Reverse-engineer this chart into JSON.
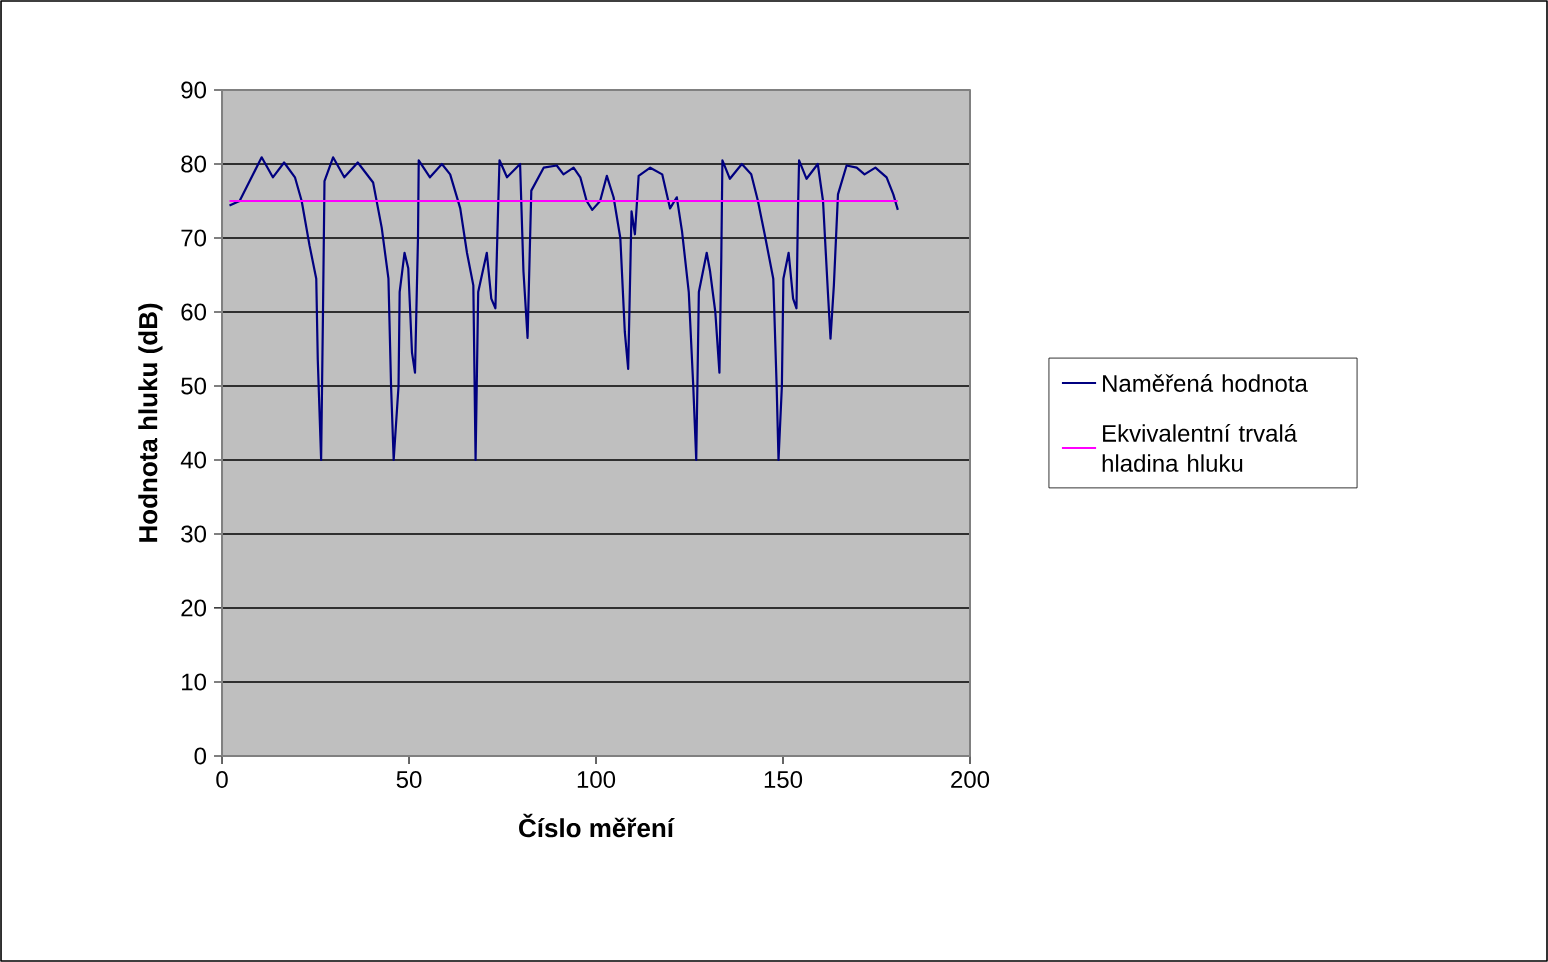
{
  "chart_data": {
    "type": "line",
    "xlabel": "Číslo měření",
    "ylabel": "Hodnota hluku (dB)",
    "xlim": [
      0,
      200
    ],
    "xticks": [
      0,
      50,
      100,
      150,
      200
    ],
    "ylim": [
      0,
      90
    ],
    "yticks": [
      0,
      10,
      20,
      30,
      40,
      50,
      60,
      70,
      80,
      90
    ],
    "grid": "y",
    "legend": "right",
    "marker": "none",
    "line_style": "solid",
    "series": [
      {
        "name": "Naměřená hodnota",
        "color": "#000080",
        "x": [
          2,
          4.7,
          7.4,
          10.6,
          13.6,
          16.6,
          19.5,
          21.3,
          23.4,
          25.2,
          25.6,
          26.5,
          27,
          27.4,
          29.7,
          32.7,
          36.3,
          40.4,
          42.7,
          44.5,
          45.2,
          45.9,
          47.2,
          47.5,
          48.8,
          49.8,
          50.8,
          51.6,
          52.4,
          52.6,
          55.6,
          58.8,
          61,
          63.7,
          65.5,
          67.2,
          67.8,
          68.5,
          70.8,
          72,
          73.1,
          73.8,
          74.2,
          76.2,
          79.7,
          80.6,
          81.7,
          82.7,
          86,
          89.5,
          91.3,
          94,
          95.8,
          97.5,
          99,
          101.1,
          102.9,
          104.7,
          106.5,
          107.7,
          108.6,
          109.5,
          110.4,
          111.4,
          114.5,
          117.7,
          119.8,
          121.6,
          123,
          124.8,
          126,
          126.8,
          127.5,
          129.6,
          130.5,
          131.9,
          133,
          133.5,
          133.8,
          135.8,
          139,
          141.5,
          143.3,
          145.1,
          147.4,
          148.3,
          148.8,
          149.7,
          150.1,
          151.5,
          152.7,
          153.6,
          154,
          154.3,
          156.3,
          159.3,
          160.7,
          162,
          162.7,
          163.6,
          164.7,
          167,
          169.7,
          171.8,
          174.7,
          177.7,
          179.5,
          180.7
        ],
        "values": [
          74.4,
          75,
          77.7,
          80.9,
          78.2,
          80.2,
          78.2,
          75,
          69,
          64.5,
          53.6,
          40,
          60,
          77.7,
          80.9,
          78.2,
          80.2,
          77.5,
          71.4,
          64.5,
          50,
          40,
          50,
          62.7,
          68,
          65.9,
          54.5,
          51.8,
          70,
          80.5,
          78.2,
          80,
          78.6,
          74,
          68,
          63.6,
          40,
          62.7,
          68,
          61.8,
          60.5,
          73.6,
          80.5,
          78.2,
          80,
          65.5,
          56.5,
          76.4,
          79.5,
          79.8,
          78.6,
          79.5,
          78.2,
          75,
          73.8,
          75,
          78.4,
          75.5,
          70,
          57.3,
          52.3,
          73.6,
          70.5,
          78.4,
          79.5,
          78.6,
          74,
          75.5,
          70.9,
          62.7,
          50,
          40,
          62.7,
          68,
          65.5,
          60,
          51.8,
          67.3,
          80.5,
          78,
          80,
          78.6,
          75,
          70.5,
          64.5,
          50,
          40,
          50,
          64.5,
          68,
          61.8,
          60.5,
          73.6,
          80.5,
          78,
          80,
          75,
          62.7,
          56.4,
          63.6,
          75.9,
          79.8,
          79.5,
          78.6,
          79.5,
          78.2,
          75.9,
          73.8
        ]
      },
      {
        "name": "Ekvivalentní trvalá hladina hluku",
        "color": "#ff00ff",
        "x": [
          2,
          180.7
        ],
        "values": [
          75,
          75
        ]
      }
    ]
  }
}
